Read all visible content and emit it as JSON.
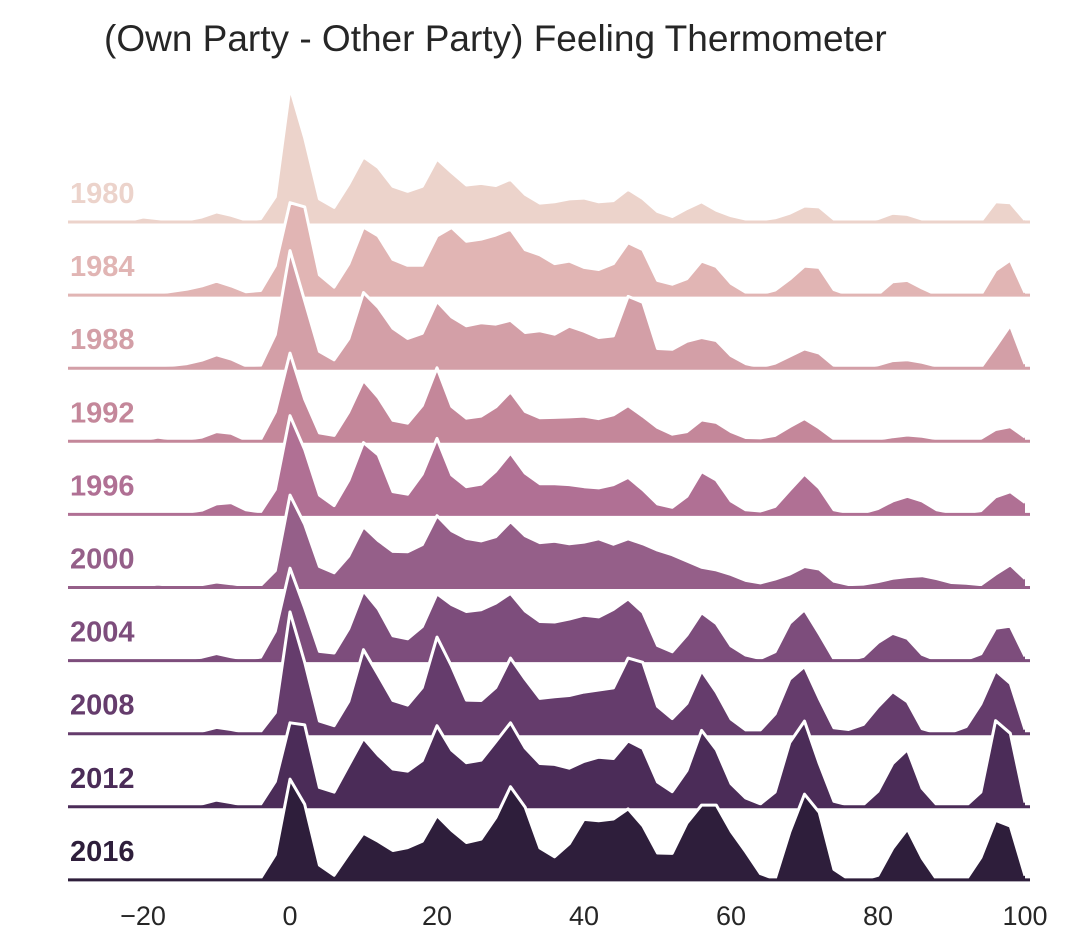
{
  "chart_data": {
    "type": "area",
    "title": "(Own Party - Other Party) Feeling Thermometer",
    "xlabel": "",
    "ylabel": "",
    "xlim": [
      -30,
      100
    ],
    "x_ticks": [
      -20,
      0,
      20,
      40,
      60,
      80,
      100
    ],
    "x_tick_labels": [
      "−20",
      "0",
      "20",
      "40",
      "60",
      "80",
      "100"
    ],
    "grid": false,
    "x": [
      -30,
      -28,
      -26,
      -24,
      -22,
      -20,
      -18,
      -16,
      -14,
      -12,
      -10,
      -8,
      -6,
      -4,
      -2,
      0,
      2,
      4,
      6,
      8,
      10,
      12,
      14,
      16,
      18,
      20,
      22,
      24,
      26,
      28,
      30,
      32,
      34,
      36,
      38,
      40,
      42,
      44,
      46,
      48,
      50,
      52,
      54,
      56,
      58,
      60,
      62,
      64,
      66,
      68,
      70,
      72,
      74,
      76,
      78,
      80,
      82,
      84,
      86,
      88,
      90,
      92,
      94,
      96,
      98,
      100
    ],
    "series": [
      {
        "name": "1980",
        "color": "#ecd3cb",
        "values": [
          0,
          0,
          0,
          0.1,
          0.3,
          1.2,
          0.8,
          0.4,
          0.5,
          1.2,
          2.4,
          1.6,
          0.5,
          0.8,
          6,
          32,
          20,
          5.5,
          3.5,
          9,
          15.5,
          13,
          8.5,
          7.3,
          8.5,
          15,
          11.8,
          8.8,
          9.2,
          8.7,
          10.2,
          6.6,
          4.5,
          4.8,
          5.5,
          5.7,
          4.8,
          5.1,
          7.8,
          5.6,
          2.5,
          1.3,
          3.2,
          4.8,
          2.8,
          1.5,
          0.7,
          0.5,
          1,
          2.1,
          3.8,
          3.6,
          0.7,
          0.3,
          0.3,
          0.8,
          2.1,
          1.8,
          0.7,
          0.3,
          0.3,
          0.2,
          0.2,
          4.8,
          4.6,
          0.5
        ]
      },
      {
        "name": "1984",
        "color": "#e1b5b4",
        "values": [
          0,
          0,
          0,
          0,
          0.1,
          0.2,
          0.4,
          0.9,
          1.4,
          2.2,
          3.3,
          2.2,
          0.8,
          1.1,
          7,
          22,
          21,
          4.8,
          1.9,
          7.4,
          16.2,
          14.1,
          8.5,
          7.1,
          7.1,
          14.1,
          16.1,
          12.8,
          13.3,
          14.3,
          15.7,
          10.8,
          9.6,
          7.5,
          8.1,
          6.6,
          6.1,
          7.5,
          12.5,
          10.8,
          3.5,
          2.6,
          3.9,
          8.1,
          6.8,
          2.8,
          0.7,
          0.3,
          1.2,
          3.8,
          6.9,
          6.6,
          1.3,
          0.1,
          0.1,
          0.2,
          3.2,
          3.5,
          1.7,
          0.1,
          0.1,
          0.1,
          0.1,
          5.9,
          8.3,
          0.6
        ]
      },
      {
        "name": "1988",
        "color": "#d39fa7",
        "values": [
          0,
          0,
          0,
          0,
          0.2,
          0.4,
          0.6,
          0.7,
          1.1,
          1.9,
          3.2,
          2.2,
          0.6,
          0.7,
          8,
          28,
          16,
          4,
          2,
          7,
          18,
          14.5,
          9.5,
          7.1,
          8.3,
          15.9,
          12.2,
          10.1,
          10.8,
          10.5,
          11.4,
          8.5,
          8.9,
          8.1,
          10,
          8.8,
          7.3,
          7.7,
          17.1,
          15.7,
          4.7,
          4.5,
          6.4,
          7.3,
          6.6,
          3,
          1.1,
          0.3,
          1.2,
          2.9,
          4.6,
          3.6,
          0.7,
          0.1,
          0.1,
          0.8,
          1.8,
          2,
          1.4,
          0.5,
          0.2,
          0.1,
          0.2,
          5.1,
          10.2,
          1
        ]
      },
      {
        "name": "1992",
        "color": "#c4879a",
        "values": [
          0,
          0,
          0,
          0,
          0.1,
          0.3,
          1,
          0.5,
          0.5,
          1,
          2.3,
          1.9,
          0.3,
          0.4,
          7,
          21,
          10,
          2,
          1.4,
          7,
          14.5,
          10.5,
          5,
          4.3,
          8.5,
          17.5,
          8.3,
          5.5,
          6,
          8.2,
          11.8,
          7.1,
          5.6,
          5.7,
          5.8,
          6,
          5.4,
          6.3,
          8.5,
          6,
          3.3,
          1.7,
          2.3,
          5.1,
          4.5,
          2.3,
          0.9,
          0.8,
          1.4,
          3.5,
          5.4,
          3.2,
          0.6,
          0.2,
          0.1,
          0.5,
          1.1,
          1.5,
          1.2,
          0.6,
          0.2,
          0.3,
          0.7,
          2.8,
          3.5,
          1
        ]
      },
      {
        "name": "1996",
        "color": "#b07094",
        "values": [
          0,
          0,
          0,
          0,
          0.1,
          0.2,
          0.3,
          0.3,
          0.5,
          1,
          2.5,
          2.8,
          1.1,
          0.6,
          5.9,
          23.5,
          15.4,
          4.6,
          2.1,
          8.1,
          17.1,
          14.2,
          5.4,
          4.8,
          9.6,
          18.1,
          9.4,
          6.6,
          7.2,
          10.3,
          14.6,
          9.8,
          7.3,
          7.3,
          7.1,
          6.6,
          6.3,
          7.1,
          8.8,
          5.9,
          2.5,
          1.7,
          4.3,
          10.2,
          8.2,
          3.2,
          1.1,
          0.8,
          1.9,
          5.8,
          9.6,
          6.3,
          1.1,
          0.4,
          0.4,
          1.4,
          3.2,
          4.3,
          3.2,
          1.1,
          0.4,
          0.4,
          0.9,
          4.2,
          5.4,
          2.8
        ]
      },
      {
        "name": "2000",
        "color": "#955f89",
        "values": [
          0,
          0,
          0,
          0,
          0.1,
          0.4,
          0.8,
          0.5,
          0.4,
          0.7,
          1.3,
          0.9,
          0.4,
          0.5,
          4,
          22,
          15,
          5,
          3.5,
          7.5,
          14.5,
          11.2,
          8.6,
          8.5,
          10.2,
          17.1,
          13.5,
          11.7,
          11.1,
          12.1,
          15.7,
          12.3,
          10.7,
          11,
          10.4,
          10.8,
          11.6,
          10.3,
          11.6,
          10.4,
          8.9,
          7.8,
          6.3,
          4.8,
          4.2,
          3.1,
          1.7,
          1.1,
          2,
          3.2,
          5,
          4.4,
          1.5,
          0.7,
          0.8,
          1.4,
          2.2,
          2.6,
          2.8,
          2.1,
          1.2,
          1,
          0.7,
          3.2,
          5.4,
          2.1
        ]
      },
      {
        "name": "2004",
        "color": "#7d4d7c",
        "values": [
          0,
          0,
          0,
          0,
          0.2,
          0.3,
          0.4,
          0.3,
          0.4,
          0.8,
          1.7,
          0.9,
          0.3,
          0.8,
          7,
          22,
          12.5,
          2.2,
          1.8,
          7.6,
          16.6,
          12.3,
          5.9,
          5.2,
          8.1,
          15.9,
          13.3,
          11.7,
          12.1,
          13.7,
          16,
          11.8,
          9.3,
          9.2,
          9.9,
          10.8,
          10.4,
          12.2,
          14.7,
          11.5,
          3.6,
          2.1,
          6.1,
          11.4,
          8.8,
          3.5,
          1.3,
          0.5,
          2.1,
          8.9,
          12.1,
          6.4,
          0.4,
          0.1,
          1,
          4.3,
          6.5,
          5.3,
          1.5,
          0.1,
          0.1,
          0.3,
          1.6,
          7.7,
          8.2,
          1
        ]
      },
      {
        "name": "2008",
        "color": "#653c6c",
        "values": [
          0,
          0,
          0,
          0,
          0.2,
          0.4,
          0.3,
          0.3,
          0.3,
          0.6,
          1.5,
          1,
          0.3,
          0.5,
          5,
          29,
          17,
          3,
          1.9,
          7.7,
          20,
          14,
          7.9,
          6.8,
          11,
          23,
          16,
          8,
          7.9,
          11,
          18,
          13,
          8.4,
          8.8,
          9.1,
          9.9,
          10.4,
          10.9,
          18,
          17,
          6.5,
          3.6,
          7.2,
          15,
          9.9,
          3.5,
          0.9,
          0.9,
          4.7,
          13,
          16,
          8.4,
          1.4,
          1,
          2.2,
          6.4,
          10,
          7.6,
          1.2,
          0.2,
          0.4,
          1.7,
          7.1,
          15,
          12,
          1
        ]
      },
      {
        "name": "2012",
        "color": "#4b2c58",
        "values": [
          0,
          0,
          0,
          0,
          0.2,
          0.3,
          0.4,
          0.3,
          0.3,
          0.7,
          1.6,
          1,
          0.3,
          0.6,
          6,
          20,
          19.5,
          4.6,
          3.5,
          9.9,
          16.3,
          12.3,
          9,
          8.5,
          11,
          19.3,
          13.5,
          10.5,
          11.1,
          15.5,
          20,
          14,
          10.3,
          10.1,
          9.2,
          10.8,
          11.8,
          11.5,
          15.7,
          13.9,
          5.9,
          3.6,
          8.6,
          18.2,
          13.6,
          5.5,
          2.1,
          0.7,
          3.5,
          15.3,
          20.4,
          10.3,
          1.3,
          0.4,
          0.5,
          3.7,
          10.3,
          13.6,
          4.4,
          0.5,
          0.3,
          0.3,
          3.5,
          20.5,
          17.5,
          1
        ]
      },
      {
        "name": "2016",
        "color": "#2e1e3b",
        "values": [
          0,
          0,
          0,
          0,
          0.2,
          0.4,
          0.3,
          0.2,
          0.2,
          0.3,
          0.6,
          0.4,
          0.3,
          0.4,
          6,
          24,
          18,
          3.5,
          1.1,
          6.2,
          11.1,
          9.2,
          7,
          7.7,
          9.2,
          15.3,
          11.8,
          8.9,
          9.7,
          14.8,
          22.2,
          17.3,
          7.6,
          5.5,
          8.6,
          14.4,
          14.1,
          14.5,
          16.9,
          12.9,
          6.4,
          6.3,
          13.5,
          17.8,
          17.8,
          11.6,
          6.7,
          1.5,
          0.2,
          11.4,
          20.4,
          16.1,
          2.5,
          0.2,
          0.1,
          1.1,
          7.5,
          12.1,
          5.2,
          0.1,
          0.1,
          0.1,
          5.3,
          14.2,
          12.8,
          1
        ]
      }
    ]
  }
}
